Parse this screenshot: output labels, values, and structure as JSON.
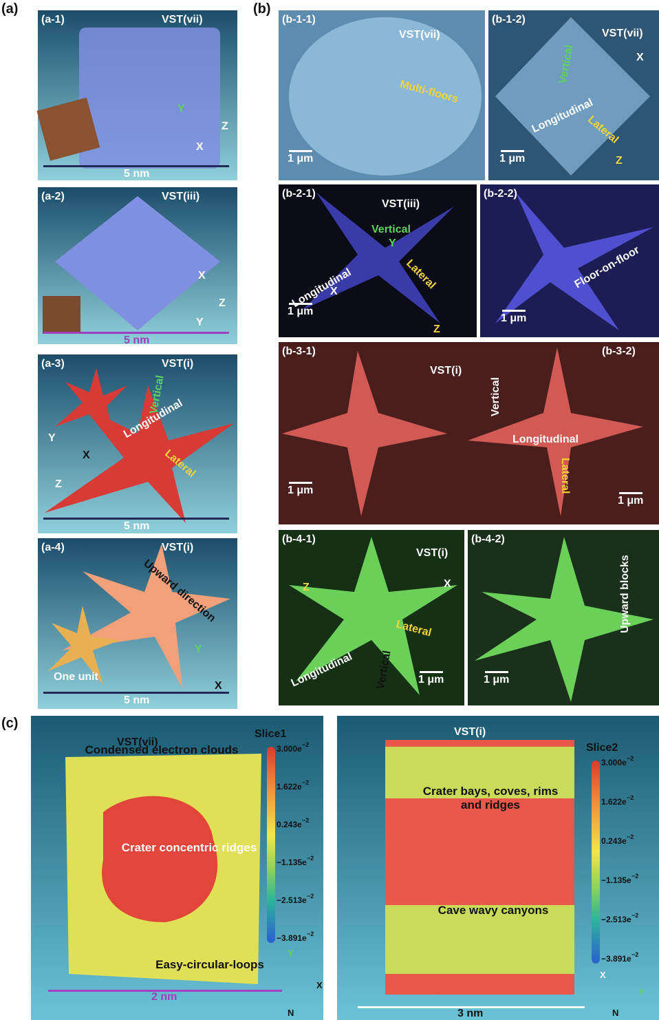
{
  "labels": {
    "a": "(a)",
    "b": "(b)",
    "c": "(c)"
  },
  "panel_a": [
    {
      "id": "(a-1)",
      "title": "VST(vii)",
      "scale": "5 nm",
      "axes": [
        "Y",
        "Z",
        "X"
      ]
    },
    {
      "id": "(a-2)",
      "title": "VST(iii)",
      "scale": "5 nm",
      "axes": [
        "X",
        "Z",
        "Y"
      ]
    },
    {
      "id": "(a-3)",
      "title": "VST(i)",
      "scale": "5 nm",
      "axes": [
        "Y",
        "X",
        "Z"
      ],
      "annotations": [
        "Vertical",
        "Longitudinal",
        "Lateral"
      ]
    },
    {
      "id": "(a-4)",
      "title": "VST(i)",
      "scale": "5 nm",
      "axes": [
        "Y",
        "X"
      ],
      "annotations": [
        "Upward direction",
        "One unit"
      ]
    }
  ],
  "panel_b": [
    {
      "id": "(b-1-1)",
      "title": "VST(vii)",
      "scale": "1 μm",
      "annotations": [
        "Multi-floors"
      ]
    },
    {
      "id": "(b-1-2)",
      "title": "VST(vii)",
      "scale": "1 μm",
      "annotations": [
        "Vertical",
        "Longitudinal",
        "Lateral"
      ],
      "axes": [
        "X",
        "Z"
      ]
    },
    {
      "id": "(b-2-1)",
      "title": "VST(iii)",
      "scale": "1 μm",
      "annotations": [
        "Vertical",
        "Longitudinal",
        "Lateral"
      ],
      "axes": [
        "Y",
        "X",
        "Z"
      ]
    },
    {
      "id": "(b-2-2)",
      "title": "VST(iii)",
      "scale": "1 μm",
      "annotations": [
        "Floor-on-floor"
      ]
    },
    {
      "id": "(b-3-1)",
      "title": "VST(i)",
      "scale": "1 μm",
      "annotations": [
        "Vertical",
        "Longitudinal",
        "Lateral"
      ]
    },
    {
      "id": "(b-3-2)",
      "scale": "1 μm"
    },
    {
      "id": "(b-4-1)",
      "title": "VST(i)",
      "scale": "1 μm",
      "annotations": [
        "Longitudinal",
        "Vertical",
        "Lateral"
      ],
      "axes": [
        "Z",
        "X"
      ]
    },
    {
      "id": "(b-4-2)",
      "scale": "1 μm",
      "annotations": [
        "Upward blocks"
      ]
    }
  ],
  "panel_c": [
    {
      "title": "VST(vii)",
      "slice": "Slice1",
      "annotations": [
        "Condensed electron clouds",
        "Crater concentric ridges",
        "Easy-circular-loops"
      ],
      "scale": "2 nm",
      "axes": [
        "Y",
        "X",
        "N"
      ]
    },
    {
      "title": "VST(i)",
      "slice": "Slice2",
      "annotations": [
        "Crater bays, coves, rims and ridges",
        "Cave wavy canyons"
      ],
      "scale": "3 nm",
      "axes": [
        "X",
        "Y",
        "N"
      ]
    }
  ],
  "colorbar_ticks": [
    {
      "base": "3.000e",
      "sup": "−2"
    },
    {
      "base": "1.622e",
      "sup": "−2"
    },
    {
      "base": "0.243e",
      "sup": "−2"
    },
    {
      "base": "−1.135e",
      "sup": "−2"
    },
    {
      "base": "−2.513e",
      "sup": "−2"
    },
    {
      "base": "−3.891e",
      "sup": "−2"
    }
  ]
}
